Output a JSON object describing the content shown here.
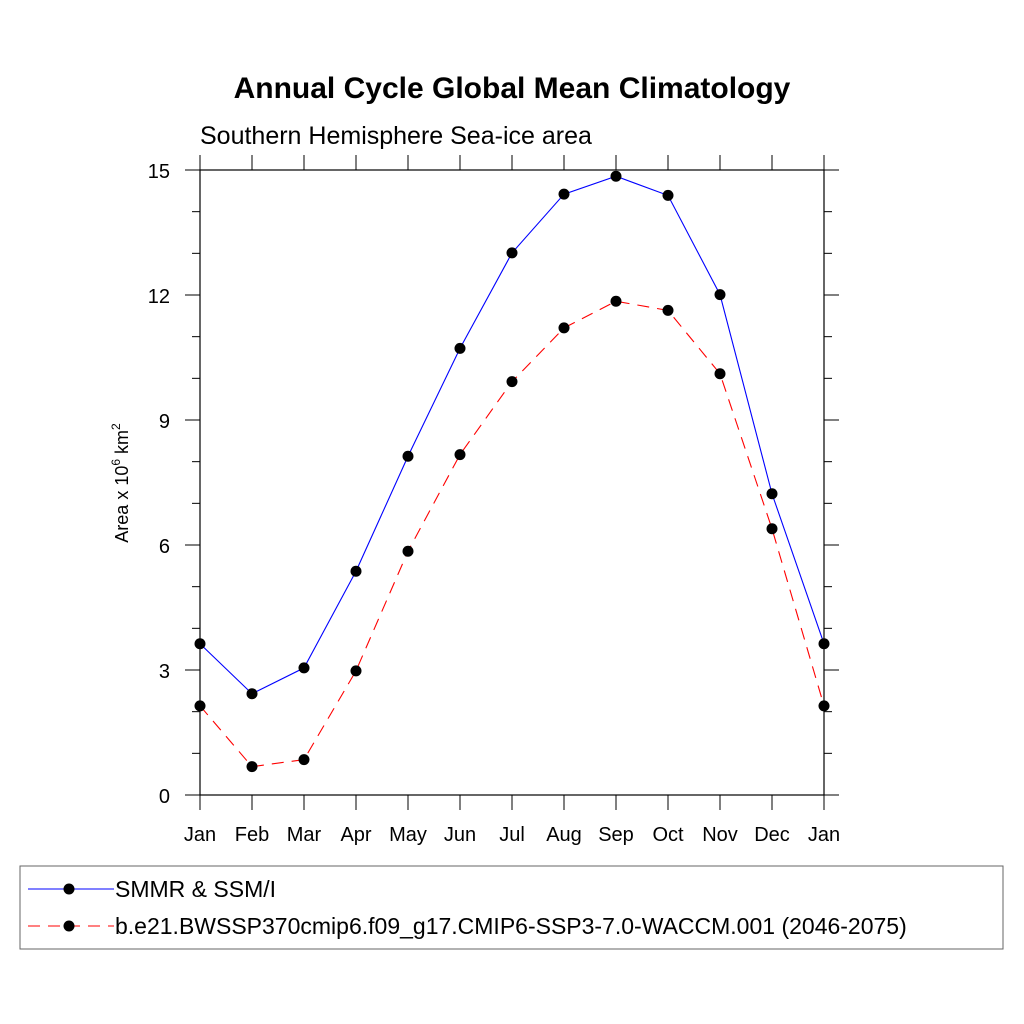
{
  "chart_data": {
    "type": "line",
    "title": "Annual Cycle Global Mean Climatology",
    "subtitle": "Southern Hemisphere Sea-ice area",
    "ylabel": {
      "prefix": "Area x 10",
      "exp1": "6",
      "mid": " km",
      "exp2": "2"
    },
    "xlabel": "",
    "categories": [
      "Jan",
      "Feb",
      "Mar",
      "Apr",
      "May",
      "Jun",
      "Jul",
      "Aug",
      "Sep",
      "Oct",
      "Nov",
      "Dec",
      "Jan"
    ],
    "ylim": [
      0,
      15
    ],
    "yticks": [
      0,
      3,
      6,
      9,
      12,
      15
    ],
    "grid": false,
    "legend_position": "bottom",
    "series": [
      {
        "name": "SMMR & SSM/I",
        "color": "#0000ff",
        "line_style": "solid",
        "marker": "filled-circle",
        "values": [
          3.63,
          2.43,
          3.05,
          5.37,
          8.13,
          10.72,
          13.01,
          14.42,
          14.85,
          14.39,
          12.01,
          7.23,
          3.63
        ]
      },
      {
        "name": "b.e21.BWSSP370cmip6.f09_g17.CMIP6-SSP3-7.0-WACCM.001 (2046-2075)",
        "color": "#ff0000",
        "line_style": "dashed",
        "marker": "filled-circle",
        "values": [
          2.14,
          0.68,
          0.85,
          2.98,
          5.85,
          8.17,
          9.92,
          11.21,
          11.85,
          11.63,
          10.11,
          6.39,
          2.14
        ]
      }
    ]
  }
}
